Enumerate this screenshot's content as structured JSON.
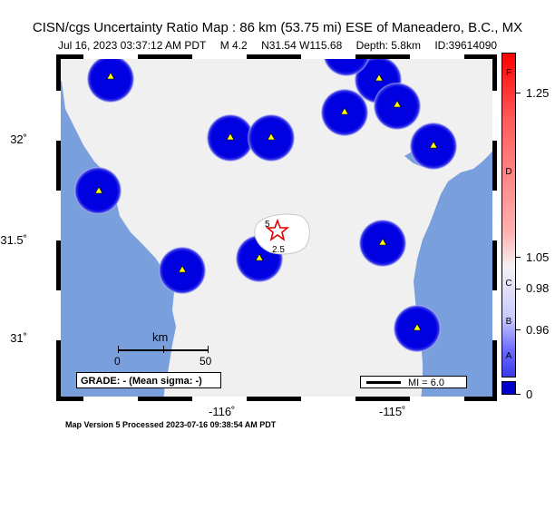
{
  "header": {
    "title": "CISN/cgs Uncertainty Ratio Map : 86 km (53.75 mi) ESE of Maneadero, B.C., MX",
    "date": "Jul 16, 2023 03:37:12 AM PDT",
    "magnitude": "M 4.2",
    "location": "N31.54 W115.68",
    "depth": "Depth: 5.8km",
    "event_id": "ID:39614090"
  },
  "axes": {
    "lat_labels": [
      "32˚",
      "31.5˚",
      "31˚"
    ],
    "lon_labels": [
      "-116˚",
      "-115˚"
    ]
  },
  "map": {
    "contour_labels": [
      "5",
      "2.5"
    ],
    "scale_bar": {
      "unit": "km",
      "start": "0",
      "end": "50"
    },
    "grade_text": "GRADE: - (Mean sigma: -)",
    "mi_legend": "MI = 6.0",
    "epicenter_icon": "red-star-icon",
    "station_icon": "yellow-triangle-icon",
    "colors": {
      "land": "#f0f0f0",
      "water": "#7a9fdd",
      "station_disc": "#0000dd",
      "epicenter": "#e00000"
    }
  },
  "colorbar": {
    "letters": [
      "F",
      "D",
      "C",
      "B",
      "A"
    ],
    "values": [
      "1.25",
      "1.05",
      "0.98",
      "0.96",
      "0"
    ]
  },
  "footer": {
    "text": "Map Version 5 Processed 2023-07-16 09:38:54 AM PDT"
  }
}
